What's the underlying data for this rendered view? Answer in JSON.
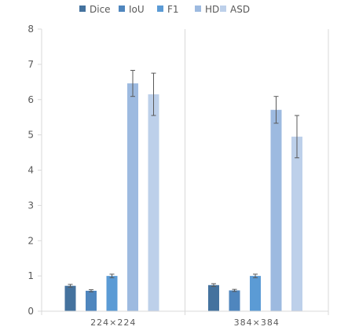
{
  "chart_data": {
    "type": "bar",
    "categories": [
      "224×224",
      "384×384"
    ],
    "series": [
      {
        "name": "Dice",
        "values": [
          0.72,
          0.74
        ],
        "errors": [
          0.04,
          0.04
        ],
        "color": "#44729E"
      },
      {
        "name": "IoU",
        "values": [
          0.58,
          0.59
        ],
        "errors": [
          0.03,
          0.03
        ],
        "color": "#4F86BE"
      },
      {
        "name": "F1",
        "values": [
          1.0,
          1.0
        ],
        "errors": [
          0.05,
          0.05
        ],
        "color": "#5B9BD5"
      },
      {
        "name": "HD",
        "values": [
          6.46,
          5.71
        ],
        "errors": [
          0.37,
          0.38
        ],
        "color": "#9DBAE0"
      },
      {
        "name": "ASD",
        "values": [
          6.15,
          4.95
        ],
        "errors": [
          0.6,
          0.6
        ],
        "color": "#BDD0EA"
      }
    ],
    "yticks": [
      "0",
      "1",
      "2",
      "3",
      "4",
      "5",
      "6",
      "7",
      "8"
    ],
    "ylim": [
      0,
      8
    ],
    "grid": "vertical category separators only",
    "legend": "top-center",
    "xlabel": "",
    "ylabel": "",
    "title": ""
  }
}
